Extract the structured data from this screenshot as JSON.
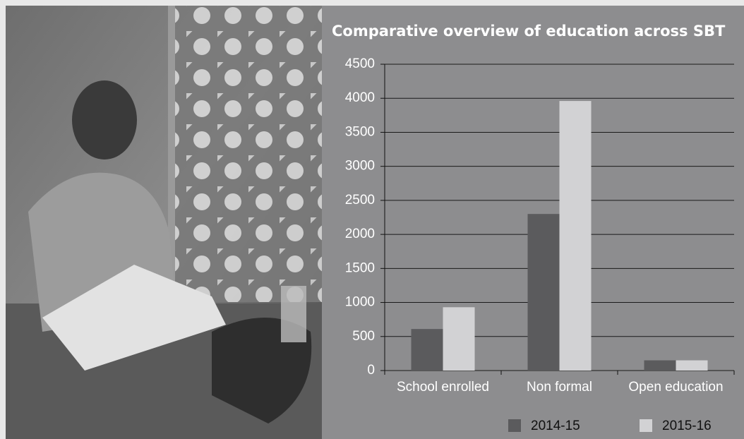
{
  "chart_data": {
    "type": "bar",
    "title": "Comparative overview of education across SBT",
    "categories": [
      "School enrolled",
      "Non formal",
      "Open education"
    ],
    "series": [
      {
        "name": "2014-15",
        "color": "#5b5b5d",
        "values": [
          610,
          2300,
          150
        ]
      },
      {
        "name": "2015-16",
        "color": "#d2d2d4",
        "values": [
          930,
          3960,
          150
        ]
      }
    ],
    "ylim": [
      0,
      4500
    ],
    "yticks": [
      0,
      500,
      1000,
      1500,
      2000,
      2500,
      3000,
      3500,
      4000,
      4500
    ],
    "grid": true,
    "legend": "bottom"
  }
}
